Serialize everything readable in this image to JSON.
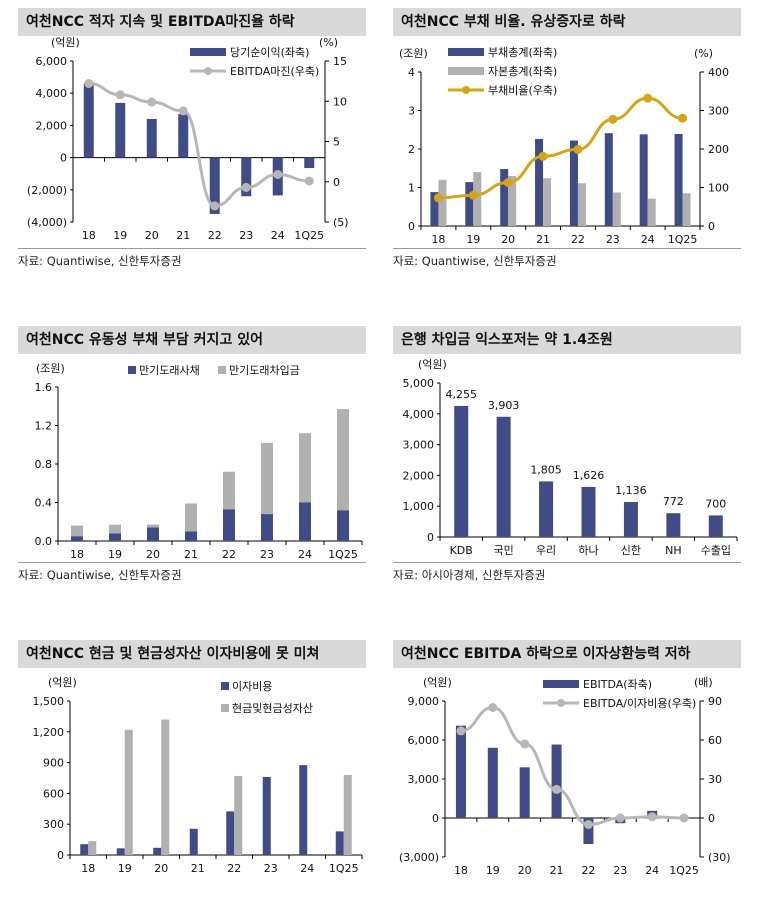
{
  "colors": {
    "navy": "#3f4c87",
    "gray": "#b0b0b0",
    "gold": "#d4a514",
    "lineGray": "#b7b7b7"
  },
  "chart_data": [
    {
      "type": "bar+line",
      "title": "여천NCC 적자 지속 및 EBITDA마진율 하락",
      "unit_left": "(억원)",
      "unit_right": "(%)",
      "categories": [
        "18",
        "19",
        "20",
        "21",
        "22",
        "23",
        "24",
        "1Q25"
      ],
      "left_ticks": [
        "6,000",
        "4,000",
        "2,000",
        "0",
        "(2,000)",
        "(4,000)"
      ],
      "ylim": [
        -4000,
        6000
      ],
      "right_ticks": [
        "15",
        "10",
        "5",
        "0",
        "(5)"
      ],
      "y2lim": [
        -5,
        15
      ],
      "series": [
        {
          "name": "당기순이익(좌축)",
          "kind": "bar",
          "axis": "left",
          "values": [
            4600,
            3400,
            2400,
            2700,
            -3500,
            -2400,
            -2350,
            -650
          ]
        },
        {
          "name": "EBITDA마진(우축)",
          "kind": "line",
          "axis": "right",
          "values": [
            12.2,
            10.8,
            9.9,
            8.8,
            -3.0,
            -0.7,
            0.9,
            0.1
          ]
        }
      ],
      "source": "자료: Quantiwise, 신한투자증권"
    },
    {
      "type": "bar+line",
      "title": "여천NCC 부채 비율. 유상증자로 하락",
      "unit_left": "(조원)",
      "unit_right": "(%)",
      "categories": [
        "18",
        "19",
        "20",
        "21",
        "22",
        "23",
        "24",
        "1Q25"
      ],
      "left_ticks": [
        "4",
        "3",
        "2",
        "1",
        "0"
      ],
      "ylim": [
        0,
        4
      ],
      "right_ticks": [
        "400",
        "300",
        "200",
        "100",
        "0"
      ],
      "y2lim": [
        0,
        400
      ],
      "series": [
        {
          "name": "부채총계(좌축)",
          "kind": "bar",
          "axis": "left",
          "values": [
            0.88,
            1.14,
            1.48,
            2.26,
            2.22,
            2.41,
            2.38,
            2.39
          ]
        },
        {
          "name": "자본총계(좌축)",
          "kind": "bar",
          "axis": "left",
          "values": [
            1.2,
            1.4,
            1.3,
            1.24,
            1.11,
            0.87,
            0.71,
            0.85
          ]
        },
        {
          "name": "부채비율(우축)",
          "kind": "line",
          "axis": "right",
          "values": [
            73,
            80,
            113,
            181,
            199,
            277,
            332,
            280
          ]
        }
      ],
      "source": "자료: Quantiwise, 신한투자증권"
    },
    {
      "type": "stacked-bar",
      "title": "여천NCC 유동성 부채 부담 커지고 있어",
      "unit_left": "(조원)",
      "categories": [
        "18",
        "19",
        "20",
        "21",
        "22",
        "23",
        "24",
        "1Q25"
      ],
      "left_ticks": [
        "1.6",
        "1.2",
        "0.8",
        "0.4",
        "0.0"
      ],
      "ylim": [
        0,
        1.6
      ],
      "series": [
        {
          "name": "만기도래사채",
          "values": [
            0.05,
            0.08,
            0.14,
            0.1,
            0.33,
            0.28,
            0.4,
            0.32
          ]
        },
        {
          "name": "만기도래차입금",
          "values": [
            0.11,
            0.09,
            0.03,
            0.29,
            0.39,
            0.74,
            0.72,
            1.05
          ]
        }
      ],
      "source": "자료: Quantiwise, 신한투자증권"
    },
    {
      "type": "bar",
      "title": "은행 차입금 익스포저는 약 1.4조원",
      "unit_left": "(억원)",
      "categories": [
        "KDB",
        "국민",
        "우리",
        "하나",
        "신한",
        "NH",
        "수출입"
      ],
      "left_ticks": [
        "5,000",
        "4,000",
        "3,000",
        "2,000",
        "1,000",
        "0"
      ],
      "ylim": [
        0,
        5000
      ],
      "values": [
        4255,
        3903,
        1805,
        1626,
        1136,
        772,
        700
      ],
      "data_labels": [
        "4,255",
        "3,903",
        "1,805",
        "1,626",
        "1,136",
        "772",
        "700"
      ],
      "source": "자료: 아시아경제, 신한투자증권"
    },
    {
      "type": "bar",
      "title": "여천NCC 현금 및 현금성자산 이자비용에 못 미쳐",
      "unit_left": "(억원)",
      "categories": [
        "18",
        "19",
        "20",
        "21",
        "22",
        "23",
        "24",
        "1Q25"
      ],
      "left_ticks": [
        "1,500",
        "1,200",
        "900",
        "600",
        "300",
        "0"
      ],
      "ylim": [
        0,
        1500
      ],
      "series": [
        {
          "name": "이자비용",
          "values": [
            105,
            65,
            70,
            255,
            425,
            760,
            875,
            230
          ]
        },
        {
          "name": "현금및현금성자산",
          "values": [
            135,
            1220,
            1320,
            null,
            770,
            null,
            null,
            780
          ]
        }
      ]
    },
    {
      "type": "bar+line",
      "title": "여천NCC EBITDA 하락으로 이자상환능력 저하",
      "unit_left": "(억원)",
      "unit_right": "(배)",
      "categories": [
        "18",
        "19",
        "20",
        "21",
        "22",
        "23",
        "24",
        "1Q25"
      ],
      "left_ticks": [
        "9,000",
        "6,000",
        "3,000",
        "0",
        "(3,000)"
      ],
      "ylim": [
        -3000,
        9000
      ],
      "right_ticks": [
        "90",
        "60",
        "30",
        "0",
        "(30)"
      ],
      "y2lim": [
        -30,
        90
      ],
      "series": [
        {
          "name": "EBITDA(좌축)",
          "kind": "bar",
          "axis": "left",
          "values": [
            7100,
            5400,
            3900,
            5650,
            -2000,
            -400,
            550,
            0
          ]
        },
        {
          "name": "EBITDA/이자비용(우축)",
          "kind": "line",
          "axis": "right",
          "values": [
            67,
            85,
            57,
            22,
            -5,
            0,
            1,
            0
          ]
        }
      ]
    }
  ]
}
